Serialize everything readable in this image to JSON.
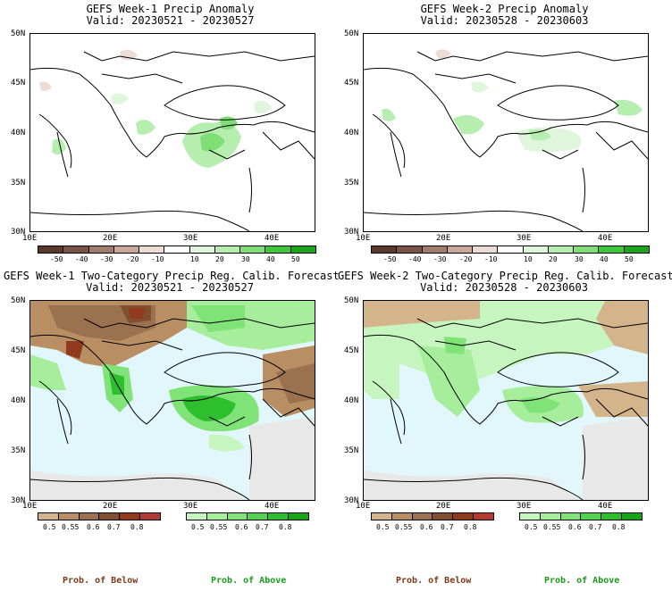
{
  "panels": [
    {
      "title1": "GEFS Week-1 Precip Anomaly",
      "title2": "Valid: 20230521 - 20230527"
    },
    {
      "title1": "GEFS Week-2 Precip Anomaly",
      "title2": "Valid: 20230528 - 20230603"
    },
    {
      "title1": "GEFS Week-1 Two-Category Precip Reg. Calib. Forecast",
      "title2": "Valid: 20230521 - 20230527"
    },
    {
      "title1": "GEFS Week-2 Two-Category Precip Reg. Calib. Forecast",
      "title2": "Valid: 20230528 - 20230603"
    }
  ],
  "axes": {
    "lat_labels": [
      "50N",
      "45N",
      "40N",
      "35N",
      "30N"
    ],
    "lon_labels": [
      "10E",
      "20E",
      "30E",
      "40E"
    ]
  },
  "anomaly_colorbar": {
    "ticks": [
      "-50",
      "-40",
      "-30",
      "-20",
      "-10",
      "10",
      "20",
      "30",
      "40",
      "50"
    ],
    "colors": [
      "#5b3a2e",
      "#7b5346",
      "#a07c6c",
      "#c9a89a",
      "#eddcd4",
      "#ffffff",
      "#dff6dc",
      "#b5eeae",
      "#7fdf76",
      "#3fc63a",
      "#1aa51a"
    ]
  },
  "prob_colorbar": {
    "below_ticks": [
      "0.5",
      "0.55",
      "0.6",
      "0.7",
      "0.8"
    ],
    "above_ticks": [
      "0.5",
      "0.55",
      "0.6",
      "0.7",
      "0.8"
    ],
    "below_colors": [
      "#d4b48a",
      "#b88e62",
      "#9a7250",
      "#7f4f30",
      "#913a1e",
      "#b23a32"
    ],
    "above_colors": [
      "#c6f5c0",
      "#a6ee9c",
      "#7fe378",
      "#52d24f",
      "#2ebf2e",
      "#15a515"
    ],
    "below_label": "Prob. of Below",
    "above_label": "Prob. of Above"
  },
  "colors": {
    "sea_fill": "#e2f7fb",
    "nodata_land": "#e8e8e8",
    "below_text": "#7a3a1a",
    "above_text": "#1a9a1a"
  }
}
